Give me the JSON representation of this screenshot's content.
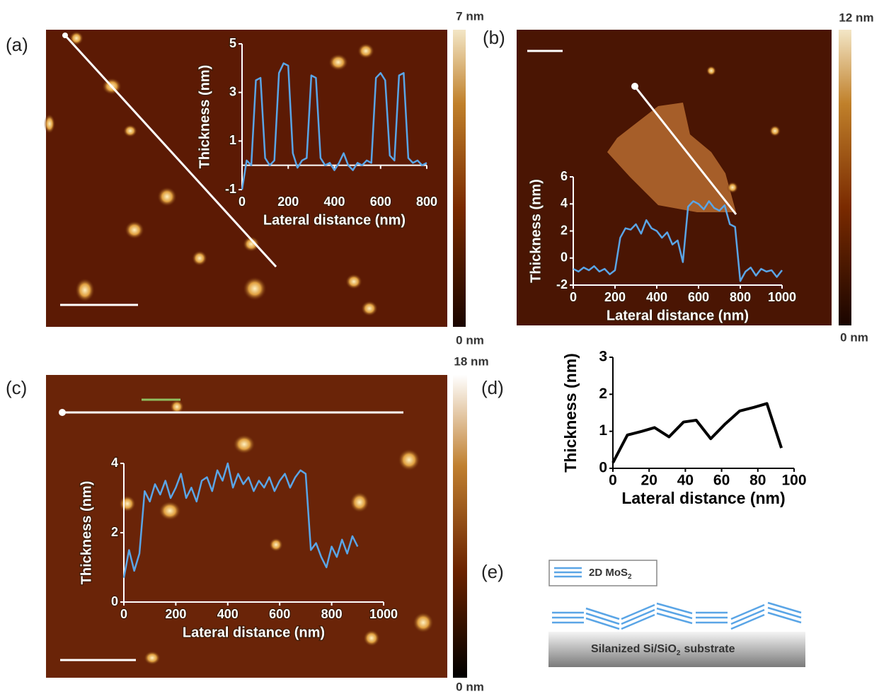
{
  "panels": [
    "(a)",
    "(b)",
    "(c)",
    "(d)",
    "(e)"
  ],
  "colorbars": [
    {
      "max": "7 nm",
      "min": "0 nm"
    },
    {
      "max": "12 nm",
      "min": "0 nm"
    },
    {
      "max": "18 nm",
      "min": "0 nm"
    }
  ],
  "schematic": {
    "legend": "2D MoS",
    "legend_sub": "2",
    "substrate": "Silanized Si/SiO",
    "substrate_sub": "2",
    "substrate_suffix": "substrate"
  },
  "chart_data": [
    {
      "type": "line",
      "xlabel": "Lateral distance (nm)",
      "ylabel": "Thickness (nm)",
      "color": "#5aa5e6",
      "x": [
        0,
        20,
        40,
        60,
        80,
        100,
        120,
        140,
        160,
        180,
        200,
        220,
        240,
        260,
        280,
        300,
        320,
        340,
        360,
        380,
        400,
        420,
        440,
        460,
        480,
        500,
        520,
        540,
        560,
        580,
        600,
        620,
        640,
        660,
        680,
        700,
        720,
        740,
        760,
        780,
        800
      ],
      "values": [
        -1,
        0.2,
        0,
        3.5,
        3.6,
        0.3,
        0,
        0.2,
        3.8,
        4.2,
        4.1,
        0.5,
        -0.1,
        0.2,
        0.3,
        3.7,
        3.6,
        0.3,
        0,
        0.1,
        -0.2,
        0.1,
        0.5,
        0,
        -0.2,
        0.1,
        0,
        0.2,
        0.1,
        3.6,
        3.8,
        3.5,
        0.4,
        0.2,
        3.7,
        3.8,
        0.3,
        0.1,
        0.2,
        0,
        0.1
      ],
      "xlim": [
        0,
        800
      ],
      "ylim": [
        -1,
        5
      ],
      "xticks": [
        0,
        200,
        400,
        600,
        800
      ],
      "yticks": [
        -1,
        1,
        3,
        5
      ]
    },
    {
      "type": "line",
      "xlabel": "Lateral distance (nm)",
      "ylabel": "Thickness (nm)",
      "color": "#5aa5e6",
      "x": [
        0,
        25,
        50,
        75,
        100,
        125,
        150,
        175,
        200,
        225,
        250,
        275,
        300,
        325,
        350,
        375,
        400,
        425,
        450,
        475,
        500,
        525,
        550,
        575,
        600,
        625,
        650,
        675,
        700,
        725,
        750,
        775,
        800,
        825,
        850,
        875,
        900,
        925,
        950,
        975,
        1000
      ],
      "values": [
        -0.8,
        -1,
        -0.7,
        -0.9,
        -0.6,
        -1,
        -0.8,
        -1.2,
        -0.9,
        1.5,
        2.2,
        2.1,
        2.5,
        1.8,
        2.8,
        2.2,
        2.0,
        1.5,
        1.9,
        1.0,
        1.3,
        -0.3,
        3.8,
        4.2,
        4.0,
        3.6,
        4.2,
        3.7,
        3.5,
        3.9,
        2.5,
        2.3,
        -1.7,
        -1.0,
        -0.7,
        -1.3,
        -0.8,
        -1.0,
        -0.9,
        -1.4,
        -0.9
      ],
      "xlim": [
        0,
        1000
      ],
      "ylim": [
        -2,
        6
      ],
      "xticks": [
        0,
        200,
        400,
        600,
        800,
        1000
      ],
      "yticks": [
        -2,
        0,
        2,
        4,
        6
      ]
    },
    {
      "type": "line",
      "xlabel": "Lateral distance (nm)",
      "ylabel": "Thickness (nm)",
      "color": "#5aa5e6",
      "x": [
        0,
        20,
        40,
        60,
        80,
        100,
        120,
        140,
        160,
        180,
        200,
        220,
        240,
        260,
        280,
        300,
        320,
        340,
        360,
        380,
        400,
        420,
        440,
        460,
        480,
        500,
        520,
        540,
        560,
        580,
        600,
        620,
        640,
        660,
        680,
        700,
        720,
        740,
        760,
        780,
        800,
        820,
        840,
        860,
        880,
        900
      ],
      "values": [
        0.7,
        1.5,
        0.9,
        1.4,
        3.2,
        2.9,
        3.4,
        3.1,
        3.5,
        3.0,
        3.3,
        3.7,
        3.0,
        3.3,
        2.9,
        3.5,
        3.6,
        3.2,
        3.8,
        3.5,
        4.0,
        3.3,
        3.7,
        3.4,
        3.6,
        3.2,
        3.5,
        3.3,
        3.6,
        3.2,
        3.5,
        3.7,
        3.3,
        3.6,
        3.8,
        3.7,
        1.5,
        1.7,
        1.3,
        1.0,
        1.6,
        1.3,
        1.8,
        1.4,
        1.9,
        1.6
      ],
      "xlim": [
        0,
        1000
      ],
      "ylim": [
        0,
        4
      ],
      "xticks": [
        0,
        200,
        400,
        600,
        800,
        1000
      ],
      "yticks": [
        0,
        2,
        4
      ]
    },
    {
      "type": "line",
      "xlabel": "Lateral distance (nm)",
      "ylabel": "Thickness (nm)",
      "color": "#000000",
      "x": [
        0,
        8,
        16,
        23,
        31,
        39,
        46,
        54,
        62,
        70,
        78,
        85,
        93
      ],
      "values": [
        0.15,
        0.9,
        1.0,
        1.1,
        0.85,
        1.25,
        1.3,
        0.8,
        1.2,
        1.55,
        1.65,
        1.75,
        0.55
      ],
      "xlim": [
        0,
        100
      ],
      "ylim": [
        0,
        3
      ],
      "xticks": [
        0,
        20,
        40,
        60,
        80,
        100
      ],
      "yticks": [
        0,
        1,
        2,
        3
      ]
    }
  ]
}
